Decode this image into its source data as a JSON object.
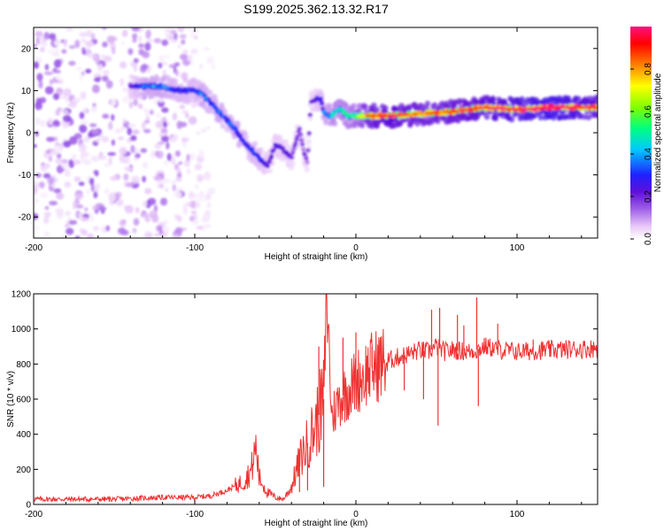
{
  "title": "S199.2025.362.13.32.R17",
  "chart_data": [
    {
      "type": "heatmap",
      "name": "spectrogram",
      "xlabel": "Height of straight line (km)",
      "ylabel": "Frequency (Hz)",
      "xlim": [
        -200,
        150
      ],
      "ylim": [
        -25,
        25
      ],
      "xticks": [
        -200,
        -100,
        0,
        100
      ],
      "yticks": [
        -20,
        -10,
        0,
        10,
        20
      ],
      "xtick_labels": [
        "-200",
        "-100",
        "0",
        "100"
      ],
      "ytick_labels": [
        "-20",
        "-10",
        "0",
        "10",
        "20"
      ],
      "colorbar": {
        "label": "Normalized spectral amplitude",
        "range": [
          0,
          1
        ],
        "ticks": [
          0.0,
          0.2,
          0.4,
          0.6,
          0.8
        ],
        "tick_labels": [
          "0.0",
          "0.2",
          "0.4",
          "0.6",
          "0.8"
        ],
        "colormap": [
          "#ffffff",
          "#e8c8f8",
          "#a060e8",
          "#6010d8",
          "#2020ff",
          "#00c8ff",
          "#00ff80",
          "#80ff00",
          "#ffff00",
          "#ff8000",
          "#ff0000",
          "#ff1080"
        ]
      },
      "ridge": {
        "x": [
          -140,
          -130,
          -120,
          -110,
          -100,
          -95,
          -90,
          -85,
          -80,
          -75,
          -70,
          -65,
          -60,
          -55,
          -50,
          -45,
          -40,
          -35,
          -32,
          -30,
          -28,
          -25,
          -22,
          -20,
          -18,
          -15,
          -12,
          -10,
          -8,
          -5,
          0,
          10,
          20,
          40,
          60,
          80,
          100,
          120,
          150
        ],
        "y": [
          11,
          11,
          11,
          10,
          10,
          9,
          7,
          5,
          3,
          1,
          -2,
          -4,
          -6,
          -8,
          -3,
          -4,
          -6,
          1,
          -5,
          -7,
          7,
          8,
          8,
          5,
          4,
          4,
          5,
          6,
          5,
          4,
          4,
          4,
          4,
          4.5,
          5,
          6,
          5.5,
          6,
          6
        ],
        "amplitude": [
          0.25,
          0.35,
          0.35,
          0.3,
          0.3,
          0.35,
          0.3,
          0.35,
          0.3,
          0.35,
          0.3,
          0.3,
          0.3,
          0.25,
          0.25,
          0.25,
          0.2,
          0.2,
          0.2,
          0.2,
          0.2,
          0.25,
          0.3,
          0.35,
          0.35,
          0.4,
          0.45,
          0.4,
          0.45,
          0.45,
          0.5,
          0.75,
          0.8,
          0.7,
          0.75,
          0.8,
          0.85,
          0.9,
          0.8
        ]
      },
      "noise_region": {
        "x_range": [
          -200,
          -95
        ],
        "y_range": [
          -25,
          25
        ]
      }
    },
    {
      "type": "line",
      "name": "snr",
      "color": "#ee3333",
      "xlabel": "Height of straight line (km)",
      "ylabel": "SNR (10 * v/v)",
      "xlim": [
        -200,
        150
      ],
      "ylim": [
        0,
        1200
      ],
      "xticks": [
        -200,
        -100,
        0,
        100
      ],
      "yticks": [
        0,
        200,
        400,
        600,
        800,
        1000,
        1200
      ],
      "xtick_labels": [
        "-200",
        "-100",
        "0",
        "100"
      ],
      "ytick_labels": [
        "0",
        "200",
        "400",
        "600",
        "800",
        "1000",
        "1200"
      ],
      "x": [
        -200,
        -150,
        -120,
        -100,
        -90,
        -80,
        -70,
        -65,
        -62,
        -60,
        -55,
        -50,
        -45,
        -40,
        -35,
        -30,
        -25,
        -20,
        -18,
        -15,
        -10,
        -5,
        0,
        10,
        20,
        30,
        40,
        45,
        50,
        55,
        60,
        70,
        75,
        80,
        90,
        100,
        120,
        150
      ],
      "y": [
        30,
        30,
        40,
        40,
        50,
        80,
        130,
        190,
        330,
        150,
        70,
        40,
        30,
        100,
        250,
        350,
        450,
        600,
        1200,
        500,
        600,
        650,
        700,
        780,
        820,
        850,
        880,
        870,
        900,
        870,
        880,
        870,
        880,
        900,
        880,
        870,
        880,
        890
      ],
      "spikes": [
        {
          "x": -18,
          "y": 1200
        },
        {
          "x": -23,
          "y": 900
        },
        {
          "x": -20,
          "y": 100
        },
        {
          "x": -30,
          "y": 80
        },
        {
          "x": -62,
          "y": 340
        },
        {
          "x": -35,
          "y": 70
        },
        {
          "x": 47,
          "y": 1110
        },
        {
          "x": 52,
          "y": 1120
        },
        {
          "x": 51,
          "y": 450
        },
        {
          "x": 42,
          "y": 600
        },
        {
          "x": 75,
          "y": 1180
        },
        {
          "x": 76,
          "y": 560
        },
        {
          "x": 63,
          "y": 1080
        },
        {
          "x": 67,
          "y": 1020
        },
        {
          "x": 88,
          "y": 1030
        },
        {
          "x": 30,
          "y": 650
        },
        {
          "x": 0,
          "y": 980
        },
        {
          "x": -8,
          "y": 950
        },
        {
          "x": 10,
          "y": 900
        },
        {
          "x": 110,
          "y": 940
        }
      ]
    }
  ]
}
